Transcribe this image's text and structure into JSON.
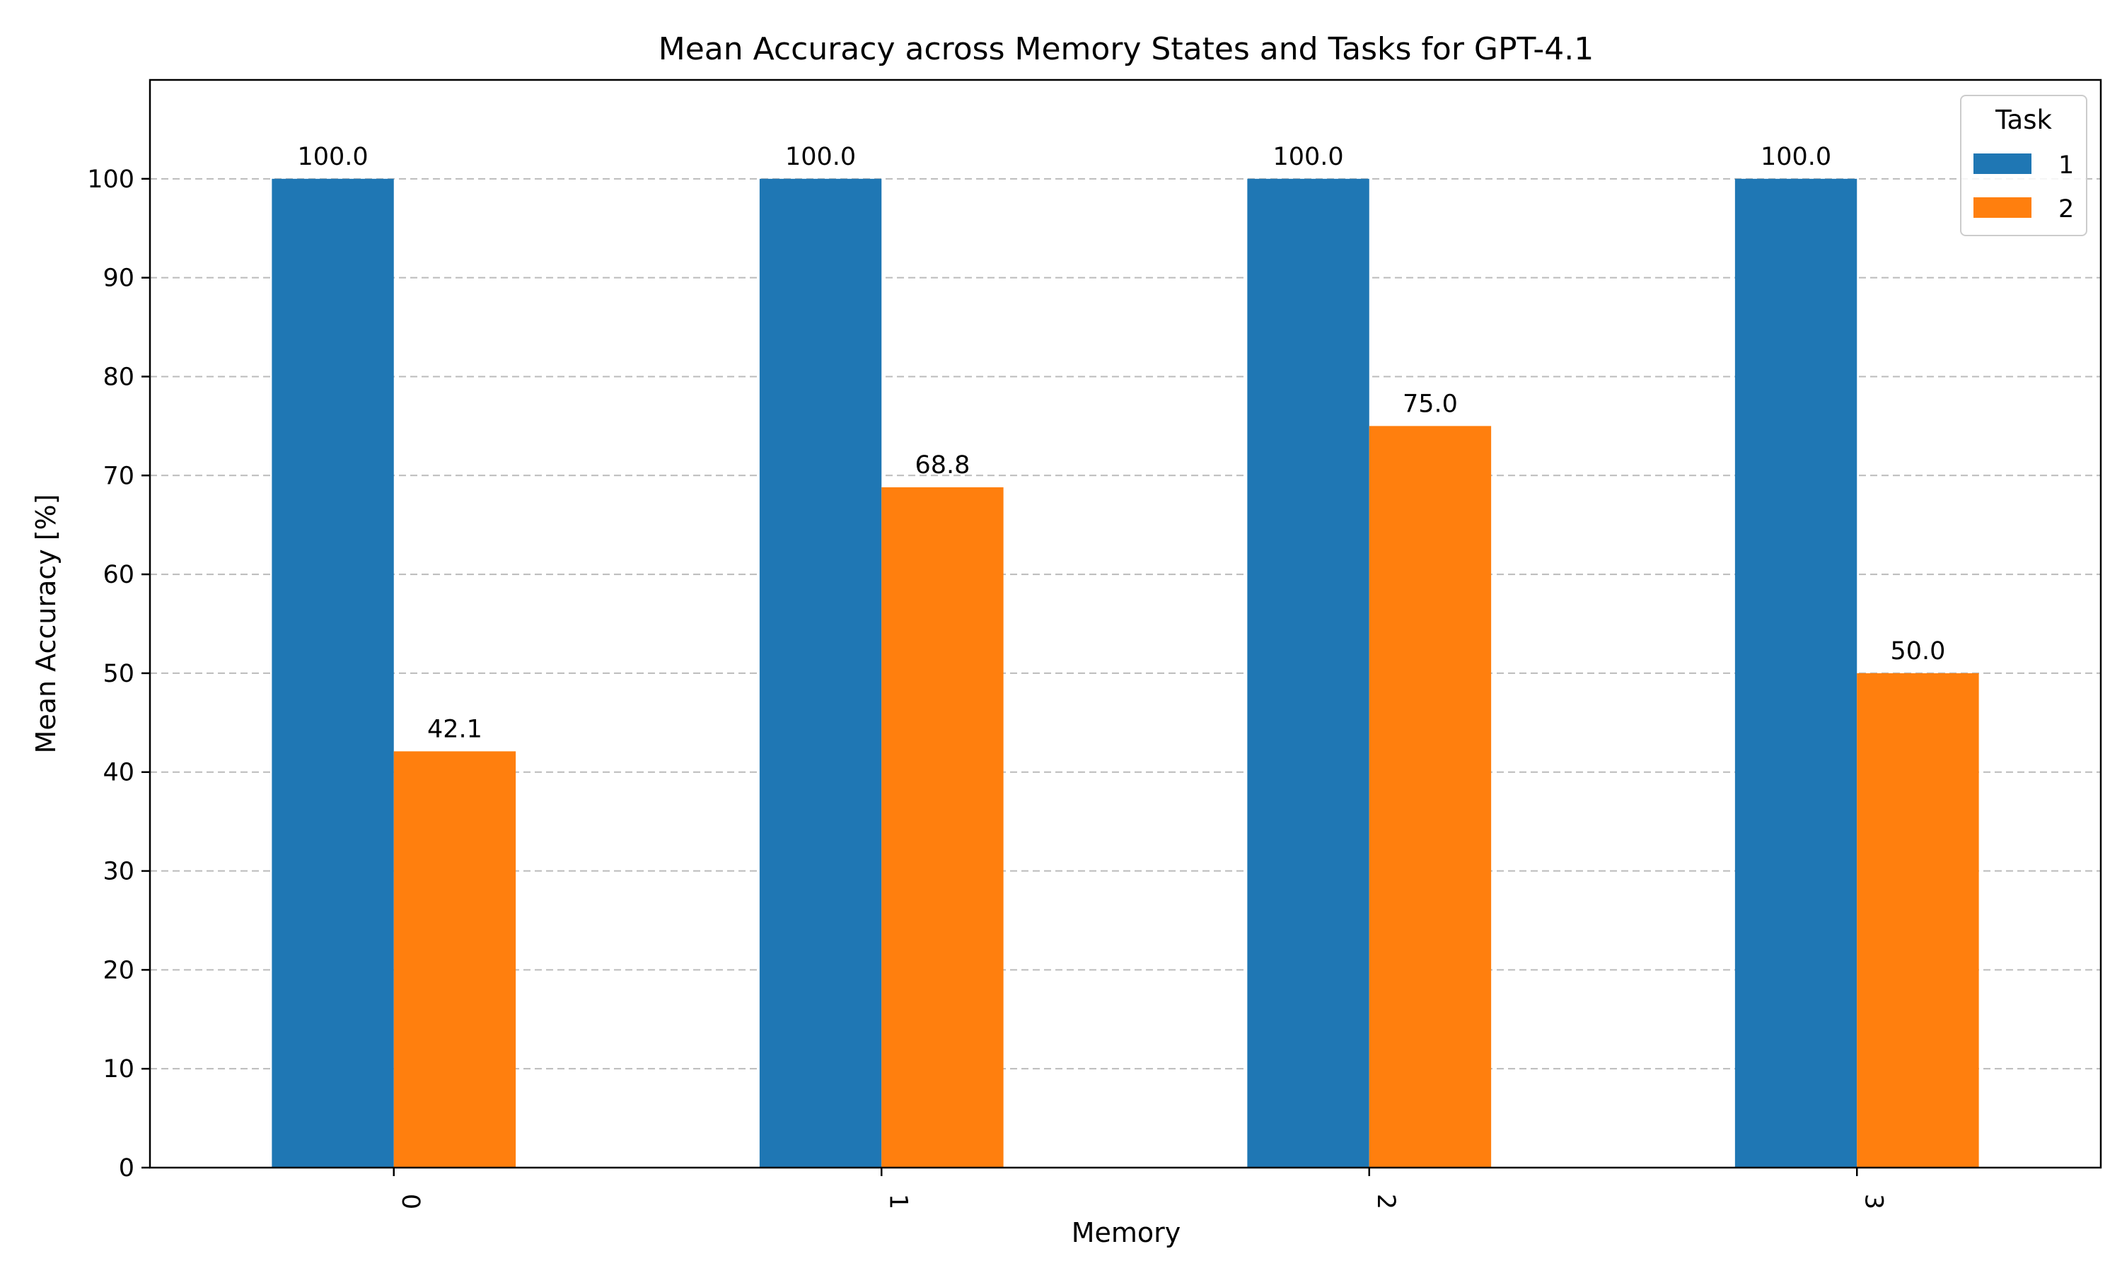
{
  "chart_data": {
    "type": "bar",
    "title": "Mean Accuracy across Memory States and Tasks for GPT-4.1",
    "xlabel": "Memory",
    "ylabel": "Mean Accuracy [%]",
    "categories": [
      "0",
      "1",
      "2",
      "3"
    ],
    "series": [
      {
        "name": "1",
        "values": [
          100.0,
          100.0,
          100.0,
          100.0
        ],
        "labels": [
          "100.0",
          "100.0",
          "100.0",
          "100.0"
        ],
        "color": "#1f77b4"
      },
      {
        "name": "2",
        "values": [
          42.1,
          68.8,
          75.0,
          50.0
        ],
        "labels": [
          "42.1",
          "68.8",
          "75.0",
          "50.0"
        ],
        "color": "#ff7f0e"
      }
    ],
    "ylim": [
      0,
      110
    ],
    "yticks": [
      0,
      10,
      20,
      30,
      40,
      50,
      60,
      70,
      80,
      90,
      100
    ],
    "grid": "y-dashed",
    "x_tick_rotation": 90,
    "legend": {
      "title": "Task",
      "placement": "top-right"
    }
  }
}
